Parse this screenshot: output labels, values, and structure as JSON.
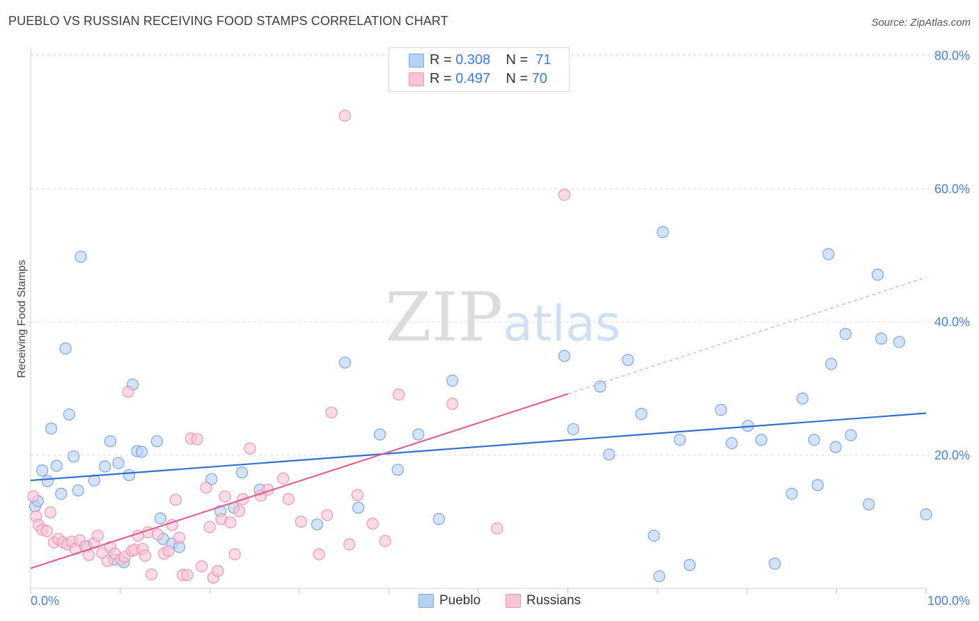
{
  "header": {
    "title": "PUEBLO VS RUSSIAN RECEIVING FOOD STAMPS CORRELATION CHART",
    "source": "Source: ZipAtlas.com"
  },
  "watermark": {
    "zip": "ZIP",
    "atlas": "atlas"
  },
  "legend": {
    "rows": [
      {
        "r_label": "R = ",
        "r_value": "0.308",
        "n_label": "N = ",
        "n_value": "71"
      },
      {
        "r_label": "R = ",
        "r_value": "0.497",
        "n_label": "N = ",
        "n_value": "70"
      }
    ]
  },
  "bottom_legend": {
    "pueblo": "Pueblo",
    "russians": "Russians"
  },
  "colors": {
    "pueblo_fill": "#b7d1f3",
    "pueblo_stroke": "#7aa5de",
    "pueblo_line": "#2f6fd0",
    "russians_fill": "#f8c5d5",
    "russians_stroke": "#ea95b2",
    "russians_line": "#e0608f",
    "tick": "#4a7fd0",
    "grid": "#dcdcdc"
  },
  "chart_data": {
    "type": "scatter",
    "title": "PUEBLO VS RUSSIAN RECEIVING FOOD STAMPS CORRELATION CHART",
    "xlabel": "",
    "ylabel": "Receiving Food Stamps",
    "xlim": [
      0,
      100
    ],
    "ylim": [
      0,
      80
    ],
    "x_tick_labels": [
      "0.0%",
      "100.0%"
    ],
    "y_tick_labels": [
      "20.0%",
      "40.0%",
      "60.0%",
      "80.0%"
    ],
    "y_ticks": [
      20,
      40,
      60,
      80
    ],
    "grid": true,
    "legend_position": "top-center",
    "series": [
      {
        "name": "Pueblo",
        "r": 0.308,
        "n": 71,
        "trend": {
          "x": [
            0,
            100
          ],
          "y": [
            16.2,
            26.3
          ]
        },
        "points": [
          [
            0.5,
            12.3
          ],
          [
            0.8,
            13.1
          ],
          [
            1.3,
            17.7
          ],
          [
            1.9,
            16.1
          ],
          [
            2.3,
            24.0
          ],
          [
            2.9,
            18.4
          ],
          [
            3.4,
            14.2
          ],
          [
            3.9,
            36.0
          ],
          [
            4.3,
            26.1
          ],
          [
            4.8,
            19.8
          ],
          [
            5.3,
            14.7
          ],
          [
            5.6,
            49.8
          ],
          [
            6.3,
            6.3
          ],
          [
            7.1,
            16.2
          ],
          [
            8.3,
            18.3
          ],
          [
            8.9,
            22.1
          ],
          [
            9.3,
            4.3
          ],
          [
            9.8,
            18.8
          ],
          [
            10.4,
            3.9
          ],
          [
            11.0,
            17.0
          ],
          [
            11.4,
            30.6
          ],
          [
            11.9,
            20.6
          ],
          [
            12.4,
            20.5
          ],
          [
            14.1,
            22.1
          ],
          [
            14.5,
            10.5
          ],
          [
            14.8,
            7.4
          ],
          [
            15.8,
            6.7
          ],
          [
            16.6,
            6.2
          ],
          [
            20.2,
            16.4
          ],
          [
            21.2,
            11.6
          ],
          [
            22.7,
            12.1
          ],
          [
            23.6,
            17.4
          ],
          [
            25.6,
            14.8
          ],
          [
            32.0,
            9.6
          ],
          [
            35.1,
            33.9
          ],
          [
            36.6,
            12.1
          ],
          [
            39.0,
            23.1
          ],
          [
            41.0,
            17.8
          ],
          [
            43.3,
            23.1
          ],
          [
            45.6,
            10.4
          ],
          [
            47.1,
            31.2
          ],
          [
            59.6,
            34.9
          ],
          [
            60.6,
            23.9
          ],
          [
            63.6,
            30.3
          ],
          [
            64.6,
            20.1
          ],
          [
            66.7,
            34.3
          ],
          [
            68.2,
            26.2
          ],
          [
            69.6,
            7.9
          ],
          [
            70.2,
            1.8
          ],
          [
            70.6,
            53.5
          ],
          [
            72.5,
            22.3
          ],
          [
            73.6,
            3.5
          ],
          [
            77.1,
            26.8
          ],
          [
            78.3,
            21.8
          ],
          [
            80.1,
            24.4
          ],
          [
            81.6,
            22.3
          ],
          [
            83.1,
            3.7
          ],
          [
            85.0,
            14.2
          ],
          [
            86.2,
            28.5
          ],
          [
            87.5,
            22.3
          ],
          [
            87.9,
            15.5
          ],
          [
            89.1,
            50.2
          ],
          [
            89.4,
            33.7
          ],
          [
            89.9,
            21.2
          ],
          [
            91.0,
            38.2
          ],
          [
            91.6,
            23.0
          ],
          [
            93.6,
            12.6
          ],
          [
            94.6,
            47.1
          ],
          [
            95.0,
            37.5
          ],
          [
            97.0,
            37.0
          ],
          [
            100.0,
            11.1
          ]
        ]
      },
      {
        "name": "Russians",
        "r": 0.497,
        "n": 70,
        "trend": {
          "x": [
            0,
            60
          ],
          "y": [
            3.0,
            29.2
          ]
        },
        "trend_extension": {
          "x": [
            60,
            100
          ],
          "y": [
            29.2,
            46.7
          ]
        },
        "points": [
          [
            0.3,
            13.8
          ],
          [
            0.6,
            10.8
          ],
          [
            0.9,
            9.5
          ],
          [
            1.3,
            8.8
          ],
          [
            1.8,
            8.6
          ],
          [
            2.2,
            11.4
          ],
          [
            2.6,
            6.9
          ],
          [
            3.1,
            7.4
          ],
          [
            3.6,
            6.9
          ],
          [
            4.1,
            6.6
          ],
          [
            4.6,
            7.0
          ],
          [
            5.0,
            5.9
          ],
          [
            5.5,
            7.2
          ],
          [
            6.1,
            6.3
          ],
          [
            6.5,
            5.0
          ],
          [
            7.1,
            6.8
          ],
          [
            7.5,
            7.9
          ],
          [
            8.0,
            5.3
          ],
          [
            8.6,
            4.1
          ],
          [
            8.9,
            6.2
          ],
          [
            9.4,
            5.2
          ],
          [
            10.1,
            4.3
          ],
          [
            10.5,
            4.7
          ],
          [
            10.9,
            29.5
          ],
          [
            11.3,
            5.6
          ],
          [
            11.6,
            5.8
          ],
          [
            12.0,
            7.9
          ],
          [
            12.5,
            5.9
          ],
          [
            12.8,
            4.9
          ],
          [
            13.1,
            8.4
          ],
          [
            13.5,
            2.1
          ],
          [
            14.2,
            8.1
          ],
          [
            14.9,
            5.2
          ],
          [
            15.4,
            5.6
          ],
          [
            15.8,
            9.5
          ],
          [
            16.2,
            13.3
          ],
          [
            16.6,
            7.6
          ],
          [
            17.0,
            2.0
          ],
          [
            17.5,
            2.0
          ],
          [
            17.9,
            22.5
          ],
          [
            18.6,
            22.4
          ],
          [
            19.1,
            3.3
          ],
          [
            19.6,
            15.1
          ],
          [
            20.0,
            9.2
          ],
          [
            20.4,
            1.6
          ],
          [
            20.9,
            2.6
          ],
          [
            21.3,
            10.4
          ],
          [
            21.7,
            13.8
          ],
          [
            22.3,
            9.9
          ],
          [
            22.8,
            5.1
          ],
          [
            23.3,
            11.6
          ],
          [
            23.7,
            13.4
          ],
          [
            24.5,
            21.0
          ],
          [
            25.7,
            13.9
          ],
          [
            26.5,
            14.8
          ],
          [
            28.2,
            16.5
          ],
          [
            28.8,
            13.4
          ],
          [
            30.2,
            10.0
          ],
          [
            32.2,
            5.1
          ],
          [
            33.1,
            11.0
          ],
          [
            33.6,
            26.4
          ],
          [
            35.1,
            71.0
          ],
          [
            35.6,
            6.6
          ],
          [
            36.5,
            14.0
          ],
          [
            38.2,
            9.7
          ],
          [
            39.6,
            7.1
          ],
          [
            41.1,
            29.1
          ],
          [
            47.1,
            27.7
          ],
          [
            52.1,
            9.0
          ],
          [
            59.6,
            59.1
          ]
        ]
      }
    ]
  }
}
